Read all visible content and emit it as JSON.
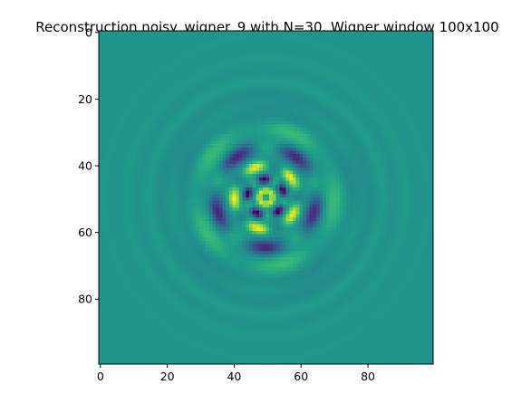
{
  "chart_data": {
    "type": "heatmap",
    "title": "Reconstruction noisy_wigner_9 with N=30, Wigner window 100x100",
    "xlabel": "",
    "ylabel": "",
    "grid": false,
    "colormap": "viridis",
    "rows": 100,
    "cols": 100,
    "xlim": [
      -0.5,
      99.5
    ],
    "ylim": [
      99.5,
      -0.5
    ],
    "xticks": [
      0,
      20,
      40,
      60,
      80
    ],
    "yticks": [
      0,
      20,
      40,
      60,
      80
    ],
    "background_value": 0.52,
    "pattern": {
      "center": [
        49.5,
        49.5
      ],
      "symmetry": 5,
      "rings": [
        {
          "radius": 2.0,
          "width": 1.0,
          "amplitude": 0.4,
          "angular": 0.0
        },
        {
          "radius": 5.5,
          "width": 1.2,
          "amplitude": 0.42,
          "angular": 0.9
        },
        {
          "radius": 9.5,
          "width": 1.6,
          "amplitude": 0.34,
          "angular": 0.8
        },
        {
          "radius": 15.0,
          "width": 2.2,
          "amplitude": 0.3,
          "angular": 0.8
        },
        {
          "radius": 20.5,
          "width": 3.0,
          "amplitude": 0.12,
          "angular": 0.6
        },
        {
          "radius": 27.0,
          "width": 4.0,
          "amplitude": 0.04,
          "angular": 0.5
        }
      ]
    }
  },
  "colors": {
    "viridis": [
      "#440154",
      "#482878",
      "#3e4989",
      "#31688e",
      "#26828e",
      "#1f9e89",
      "#35b779",
      "#6ece58",
      "#b5de2b",
      "#fde725"
    ]
  }
}
